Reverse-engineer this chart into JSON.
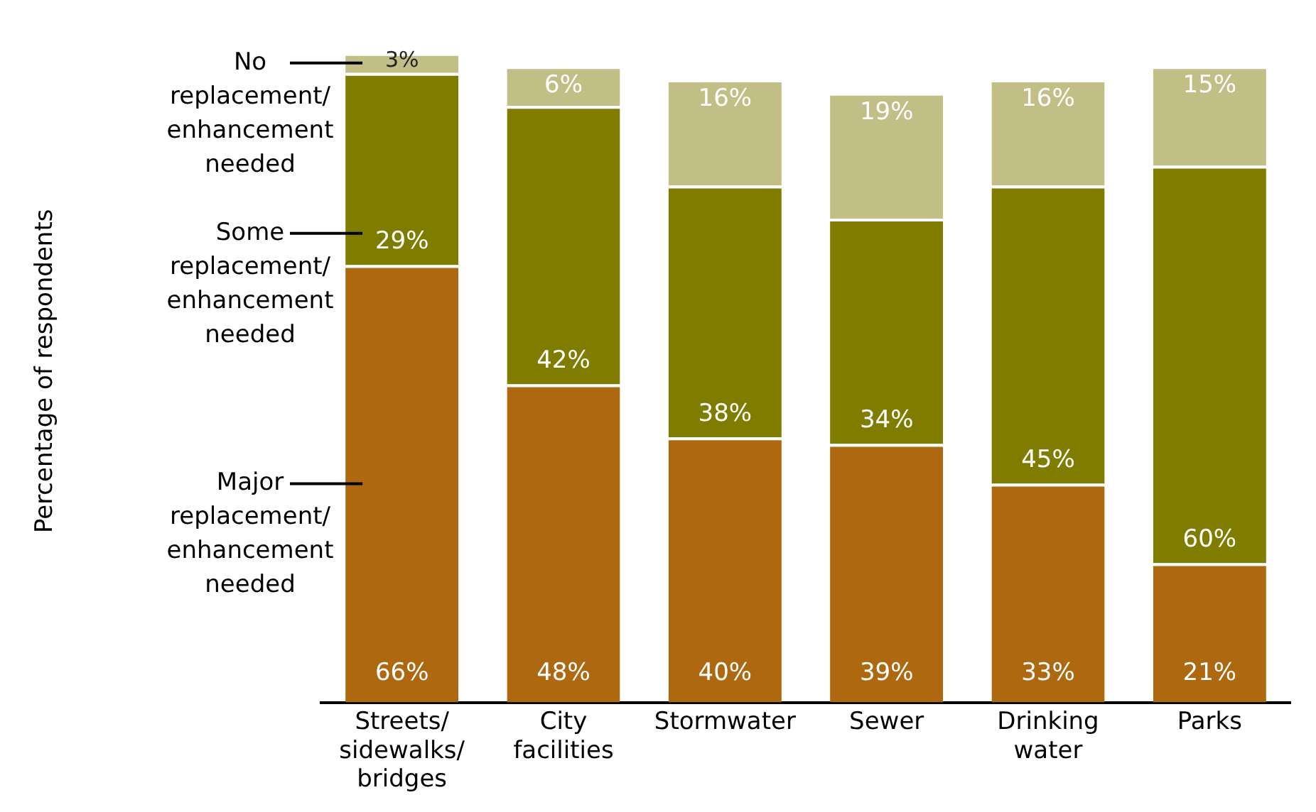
{
  "chart_data": {
    "type": "bar",
    "stacked": true,
    "annotations": [
      "Percentage of respondents"
    ],
    "categories": [
      "Streets/ sidewalks/ bridges",
      "City facilities",
      "Stormwater",
      "Sewer",
      "Drinking water",
      "Parks"
    ],
    "series": [
      {
        "name": "Major replacement/ enhancement needed",
        "color": "#ad6810",
        "values": [
          66,
          48,
          40,
          39,
          33,
          21
        ],
        "value_labels": [
          "66%",
          "48%",
          "40%",
          "39%",
          "33%",
          "21%"
        ]
      },
      {
        "name": "Some replacement/ enhancement needed",
        "color": "#807c00",
        "values": [
          29,
          42,
          38,
          34,
          45,
          60
        ],
        "value_labels": [
          "29%",
          "42%",
          "38%",
          "34%",
          "45%",
          "60%"
        ]
      },
      {
        "name": "No replacement/ enhancement needed",
        "color": "#c1bf85",
        "values": [
          3,
          6,
          16,
          19,
          16,
          15
        ],
        "value_labels": [
          "3%",
          "6%",
          "16%",
          "19%",
          "16%",
          "15%"
        ]
      }
    ],
    "grid": false,
    "legend": false
  }
}
